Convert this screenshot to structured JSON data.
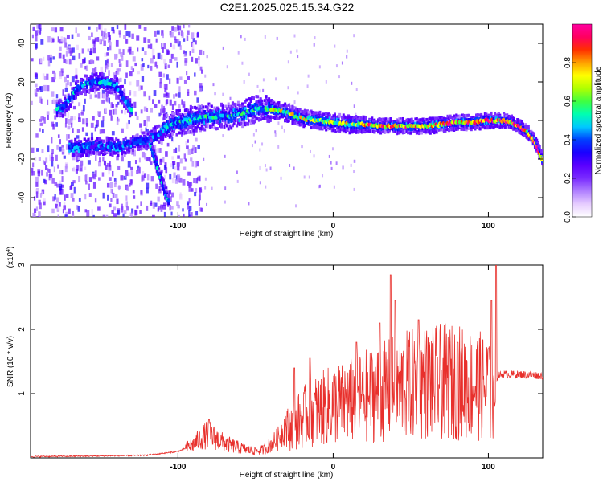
{
  "title": "C2E1.2025.025.15.34.G22",
  "chart_data": [
    {
      "type": "heatmap",
      "name": "spectrogram",
      "xlabel": "Height of straight line (km)",
      "ylabel": "Frequency (Hz)",
      "xlim": [
        -195,
        135
      ],
      "ylim": [
        -50,
        50
      ],
      "xticks": [
        -100,
        0,
        100
      ],
      "yticks": [
        -40,
        -20,
        0,
        20,
        40
      ],
      "colorbar": {
        "label": "Normalized spectral amplitude",
        "range": [
          0,
          1
        ],
        "ticks": [
          "0.0",
          "0.2",
          "0.4",
          "0.6",
          "0.8"
        ],
        "colors": [
          "#ffffff",
          "#e6ccff",
          "#b080ff",
          "#7a2cff",
          "#5a00ff",
          "#1a00ff",
          "#0040ff",
          "#00c8ff",
          "#00ffb0",
          "#40ff40",
          "#b0ff00",
          "#ffff00",
          "#ffa000",
          "#ff3000",
          "#ff0060",
          "#ff00a0"
        ]
      },
      "ridge_main": {
        "x": [
          -110,
          -100,
          -90,
          -80,
          -70,
          -60,
          -50,
          -40,
          -30,
          -20,
          -10,
          0,
          10,
          20,
          30,
          40,
          50,
          60,
          70,
          80,
          90,
          100,
          110,
          115,
          120,
          125,
          130,
          135
        ],
        "y": [
          -4,
          -1,
          1,
          2,
          2,
          3,
          6,
          6,
          4,
          1,
          0,
          -1,
          -2,
          -2,
          -3,
          -3,
          -3,
          -3,
          -2,
          -1,
          -1,
          0,
          0,
          -1,
          -3,
          -6,
          -11,
          -21
        ]
      },
      "ridge_upper_left": {
        "x": [
          -175,
          -170,
          -165,
          -160,
          -155,
          -150,
          -145,
          -140,
          -135,
          -130
        ],
        "y": [
          6,
          11,
          16,
          19,
          20,
          20,
          19,
          18,
          12,
          5
        ]
      },
      "ridge_lower_left": {
        "x": [
          -165,
          -160,
          -150,
          -140,
          -130,
          -120,
          -115,
          -110
        ],
        "y": [
          -14,
          -14,
          -13,
          -14,
          -12,
          -10,
          -8,
          -6
        ]
      },
      "ridge_descending": {
        "x": [
          -118,
          -115,
          -112,
          -110,
          -108,
          -106
        ],
        "y": [
          -12,
          -20,
          -28,
          -33,
          -38,
          -42
        ]
      }
    },
    {
      "type": "line",
      "name": "snr",
      "xlabel": "Height of straight line (km)",
      "ylabel": "SNR (10 * v/v)",
      "multiplier": "(x10",
      "multiplier_exp": "4",
      "xlim": [
        -195,
        135
      ],
      "ylim": [
        0,
        3
      ],
      "xticks": [
        -100,
        0,
        100
      ],
      "yticks": [
        1,
        2,
        3
      ],
      "color": "#e8302c",
      "envelope": {
        "x": [
          -195,
          -150,
          -120,
          -100,
          -90,
          -85,
          -80,
          -75,
          -70,
          -65,
          -60,
          -55,
          -50,
          -45,
          -40,
          -35,
          -30,
          -25,
          -20,
          -15,
          -10,
          -5,
          0,
          10,
          20,
          30,
          40,
          50,
          60,
          70,
          80,
          90,
          100,
          103,
          104,
          106,
          110,
          120,
          135
        ],
        "y": [
          0.02,
          0.03,
          0.04,
          0.1,
          0.2,
          0.3,
          0.35,
          0.28,
          0.22,
          0.18,
          0.15,
          0.12,
          0.1,
          0.12,
          0.2,
          0.3,
          0.5,
          0.6,
          0.7,
          0.8,
          0.85,
          0.9,
          0.95,
          1.0,
          1.1,
          1.15,
          1.25,
          1.3,
          1.35,
          1.35,
          1.35,
          1.3,
          1.25,
          0.9,
          0.8,
          1.28,
          1.3,
          1.3,
          1.28
        ]
      },
      "spikes": {
        "x": [
          -80,
          -25,
          -15,
          15,
          30,
          37,
          40,
          55,
          80,
          100,
          102,
          105
        ],
        "y": [
          0.6,
          1.4,
          1.55,
          1.8,
          2.1,
          2.85,
          2.45,
          2.15,
          1.8,
          1.7,
          2.45,
          3.0
        ]
      }
    }
  ]
}
